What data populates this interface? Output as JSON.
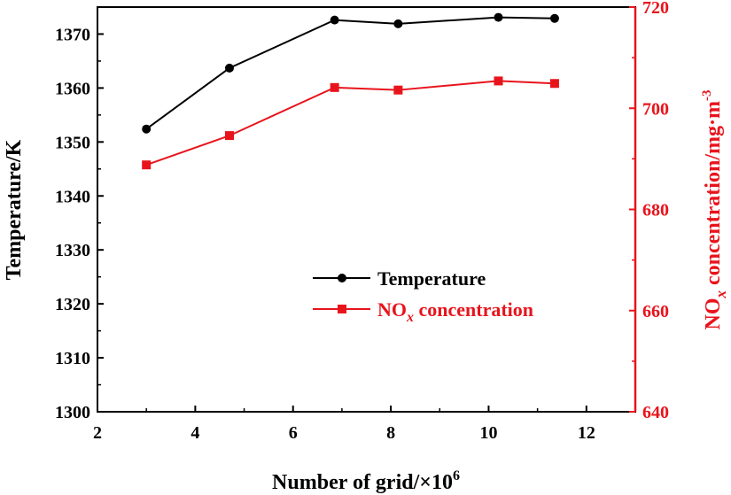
{
  "chart_data": {
    "type": "line",
    "xlabel": "Number of grid/×10",
    "xlabel_sup": "6",
    "xlim": [
      2,
      13
    ],
    "x_ticks": [
      2,
      4,
      6,
      8,
      10,
      12
    ],
    "left_axis": {
      "label": "Temperature/K",
      "ylim": [
        1300,
        1375
      ],
      "ticks": [
        1300,
        1310,
        1320,
        1330,
        1340,
        1350,
        1360,
        1370
      ]
    },
    "right_axis": {
      "label_prefix": "NO",
      "label_sub": "x",
      "label_rest": " concentration/mg·m",
      "label_sup": "-3",
      "ylim": [
        640,
        720
      ],
      "ticks": [
        640,
        660,
        680,
        700,
        720
      ]
    },
    "x": [
      3.0,
      4.7,
      6.85,
      8.15,
      10.2,
      11.35
    ],
    "series": [
      {
        "name": "Temperature",
        "axis": "left",
        "marker": "circle",
        "values": [
          1352.4,
          1363.7,
          1372.6,
          1371.9,
          1373.1,
          1372.9
        ]
      },
      {
        "name": "NO",
        "name_sub": "x",
        "name_rest": " concentration",
        "axis": "right",
        "marker": "square",
        "values": [
          688.8,
          694.6,
          704.1,
          703.6,
          705.4,
          704.9
        ]
      }
    ],
    "legend_position": "center-right",
    "colors": {
      "axis": "#000000",
      "temperature": "#000000",
      "nox": "#e8141c"
    }
  }
}
